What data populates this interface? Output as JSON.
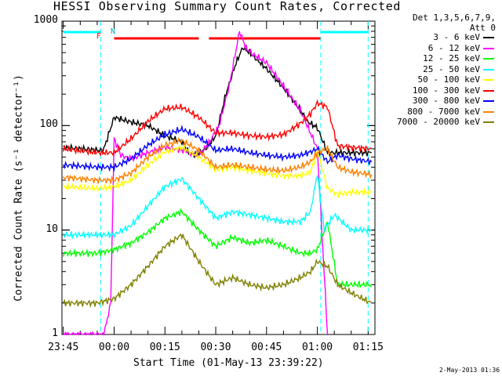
{
  "chart_data": {
    "type": "line",
    "title": "HESSI Observing Summary Count Rates, Corrected",
    "xlabel": "Start Time (01-May-13 23:39:22)",
    "ylabel": "Corrected Count Rate (s⁻¹ detector⁻¹)",
    "yscale": "log",
    "ylim": [
      1,
      1000
    ],
    "xlim_minutes": [
      -15.4,
      77
    ],
    "x_tick_labels": [
      "23:45",
      "00:00",
      "00:15",
      "00:30",
      "00:45",
      "01:00",
      "01:15"
    ],
    "x_tick_minutes": [
      -15,
      0,
      15,
      30,
      45,
      60,
      75
    ],
    "y_tick_labels": [
      "1",
      "10",
      "100",
      "1000"
    ],
    "y_ticks": [
      1,
      10,
      100,
      1000
    ],
    "legend_header": [
      "Det 1,3,5,6,7,9,",
      "Att 0"
    ],
    "legend_placement": "right",
    "annotations": {
      "F": "F",
      "N": "N"
    },
    "series": [
      {
        "name": "3 - 6 keV",
        "color": "#000000",
        "x": [
          -15,
          -4,
          -3,
          0,
          5,
          10,
          15,
          20,
          22,
          24,
          27,
          30,
          33,
          36,
          38,
          40,
          45,
          50,
          55,
          57,
          60,
          63,
          66,
          70,
          76
        ],
        "y": [
          62,
          58,
          60,
          120,
          108,
          100,
          80,
          70,
          55,
          52,
          60,
          80,
          200,
          400,
          560,
          500,
          350,
          230,
          140,
          110,
          95,
          55,
          55,
          55,
          55
        ]
      },
      {
        "name": "6 - 12 keV",
        "color": "#ff00ff",
        "x": [
          -15,
          -4,
          -3,
          -1,
          0,
          2,
          5,
          10,
          15,
          20,
          25,
          28,
          31,
          34,
          37,
          39,
          41,
          45,
          50,
          55,
          57,
          60,
          63
        ],
        "y": [
          1,
          1,
          1,
          2,
          75,
          52,
          48,
          55,
          62,
          58,
          52,
          68,
          100,
          240,
          800,
          550,
          480,
          400,
          240,
          140,
          100,
          60,
          1
        ]
      },
      {
        "name": "12 - 25 keV",
        "color": "#00ff00",
        "x": [
          -15,
          -5,
          0,
          5,
          10,
          15,
          20,
          25,
          30,
          35,
          40,
          45,
          50,
          55,
          58,
          60,
          63,
          66,
          70,
          76
        ],
        "y": [
          6,
          6,
          6.5,
          7.5,
          9.5,
          13,
          15,
          10,
          7,
          8.5,
          7.5,
          8,
          7,
          6,
          6,
          6.5,
          12,
          3,
          3,
          3
        ]
      },
      {
        "name": "25 - 50 keV",
        "color": "#00ffff",
        "x": [
          -15,
          -5,
          0,
          5,
          10,
          15,
          20,
          25,
          30,
          35,
          40,
          45,
          50,
          55,
          58,
          60,
          62,
          65,
          70,
          76
        ],
        "y": [
          9,
          9,
          9,
          11,
          17,
          26,
          31,
          20,
          13,
          15,
          14,
          13,
          12,
          12,
          15,
          35,
          10,
          14,
          10,
          10
        ]
      },
      {
        "name": "50 - 100 keV",
        "color": "#ffff00",
        "x": [
          -15,
          -5,
          0,
          5,
          10,
          15,
          20,
          25,
          30,
          35,
          40,
          45,
          50,
          55,
          58,
          60,
          63,
          66,
          70,
          76
        ],
        "y": [
          26,
          25,
          26,
          30,
          42,
          56,
          62,
          50,
          38,
          40,
          37,
          35,
          33,
          33,
          36,
          58,
          25,
          22,
          23,
          23
        ]
      },
      {
        "name": "100 - 300 keV",
        "color": "#ff0000",
        "x": [
          -15,
          -5,
          0,
          5,
          10,
          15,
          20,
          25,
          30,
          35,
          40,
          45,
          50,
          55,
          58,
          60,
          63,
          66,
          70,
          76
        ],
        "y": [
          60,
          55,
          55,
          75,
          110,
          145,
          150,
          120,
          85,
          85,
          80,
          78,
          82,
          105,
          130,
          165,
          150,
          64,
          62,
          60
        ]
      },
      {
        "name": "300 - 800 keV",
        "color": "#0000ff",
        "x": [
          -15,
          -5,
          0,
          5,
          10,
          15,
          20,
          25,
          30,
          35,
          40,
          45,
          50,
          55,
          58,
          60,
          63,
          66,
          70,
          76
        ],
        "y": [
          42,
          40,
          40,
          48,
          65,
          82,
          92,
          78,
          58,
          60,
          55,
          52,
          50,
          52,
          56,
          60,
          45,
          52,
          48,
          45
        ]
      },
      {
        "name": "800 - 7000 keV",
        "color": "#ff8000",
        "x": [
          -15,
          -5,
          0,
          5,
          10,
          15,
          20,
          25,
          30,
          35,
          40,
          45,
          50,
          55,
          58,
          60,
          63,
          66,
          70,
          76
        ],
        "y": [
          32,
          30,
          30,
          35,
          50,
          65,
          72,
          58,
          40,
          42,
          40,
          38,
          37,
          40,
          45,
          55,
          60,
          40,
          36,
          34
        ]
      },
      {
        "name": "7000 - 20000 keV",
        "color": "#808000",
        "x": [
          -15,
          -5,
          0,
          5,
          10,
          15,
          20,
          25,
          30,
          35,
          40,
          45,
          50,
          55,
          58,
          60,
          63,
          66,
          70,
          76
        ],
        "y": [
          2,
          2,
          2.2,
          3,
          4.5,
          7,
          9,
          5,
          3,
          3.5,
          3,
          2.8,
          3,
          3.5,
          4,
          5,
          4.5,
          3,
          2.5,
          2
        ]
      }
    ],
    "bars": [
      {
        "name": "F",
        "color": "#ff0000",
        "x_start": 0,
        "x_end": 25
      },
      {
        "name": "F",
        "color": "#ff0000",
        "x_start": 28,
        "x_end": 61
      },
      {
        "name": "N",
        "color": "#00ffff",
        "x_start": -15,
        "x_end": -4
      },
      {
        "name": "N",
        "color": "#00ffff",
        "x_start": 61,
        "x_end": 75
      }
    ]
  },
  "timestamp": "2-May-2013 01:36"
}
